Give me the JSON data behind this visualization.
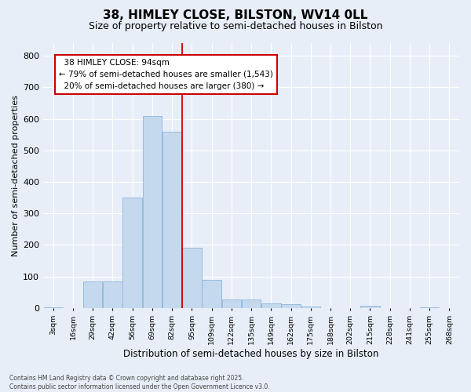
{
  "title": "38, HIMLEY CLOSE, BILSTON, WV14 0LL",
  "subtitle": "Size of property relative to semi-detached houses in Bilston",
  "xlabel": "Distribution of semi-detached houses by size in Bilston",
  "ylabel": "Number of semi-detached properties",
  "property_label": "38 HIMLEY CLOSE: 94sqm",
  "pct_smaller": 79,
  "count_smaller": "1,543",
  "pct_larger": 20,
  "count_larger": "380",
  "bin_labels": [
    "3sqm",
    "16sqm",
    "29sqm",
    "42sqm",
    "56sqm",
    "69sqm",
    "82sqm",
    "95sqm",
    "109sqm",
    "122sqm",
    "135sqm",
    "149sqm",
    "162sqm",
    "175sqm",
    "188sqm",
    "202sqm",
    "215sqm",
    "228sqm",
    "241sqm",
    "255sqm",
    "268sqm"
  ],
  "bar_values": [
    3,
    0,
    85,
    85,
    350,
    610,
    560,
    190,
    90,
    28,
    28,
    15,
    12,
    6,
    0,
    0,
    7,
    0,
    0,
    3,
    0
  ],
  "bar_color": "#c5d9ee",
  "bar_edge_color": "#8db4d9",
  "vline_color": "#cc0000",
  "background_color": "#e8eef8",
  "grid_color": "#ffffff",
  "ylim": [
    0,
    840
  ],
  "yticks": [
    0,
    100,
    200,
    300,
    400,
    500,
    600,
    700,
    800
  ],
  "footnote": "Contains HM Land Registry data © Crown copyright and database right 2025.\nContains public sector information licensed under the Open Government Licence v3.0.",
  "annotation_box_color": "#ffffff",
  "annotation_border_color": "#cc0000",
  "title_fontsize": 11,
  "subtitle_fontsize": 9
}
